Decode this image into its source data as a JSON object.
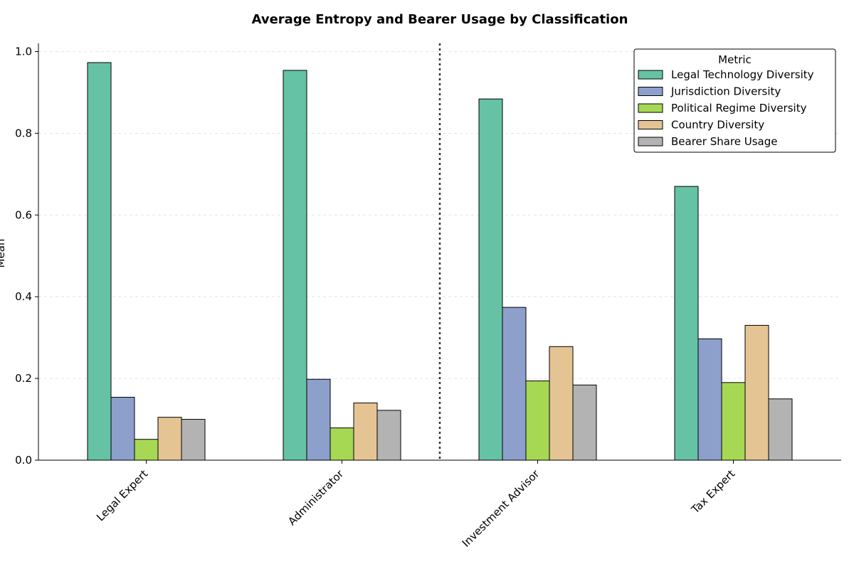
{
  "chart_data": {
    "type": "bar",
    "title": "Average Entropy and Bearer Usage by Classification",
    "xlabel": "",
    "ylabel": "Mean",
    "ylim": [
      0,
      1.02
    ],
    "yticks": [
      0.0,
      0.2,
      0.4,
      0.6,
      0.8,
      1.0
    ],
    "ytick_labels": [
      "0.0",
      "0.2",
      "0.4",
      "0.6",
      "0.8",
      "1.0"
    ],
    "grid": "horizontal dashed",
    "categories": [
      "Legal Expert",
      "Administrator",
      "Investment Advisor",
      "Tax Expert"
    ],
    "separator_after_category": 1,
    "legend": {
      "title": "Metric",
      "placement": "top-right"
    },
    "series": [
      {
        "name": "Legal Technology Diversity",
        "color": "#66c2a5",
        "values": [
          0.973,
          0.954,
          0.884,
          0.67
        ]
      },
      {
        "name": "Jurisdiction Diversity",
        "color": "#8da0cb",
        "values": [
          0.154,
          0.198,
          0.374,
          0.297
        ]
      },
      {
        "name": "Political Regime Diversity",
        "color": "#a6d854",
        "values": [
          0.051,
          0.079,
          0.194,
          0.19
        ]
      },
      {
        "name": "Country Diversity",
        "color": "#e5c494",
        "values": [
          0.105,
          0.14,
          0.278,
          0.33
        ]
      },
      {
        "name": "Bearer Share Usage",
        "color": "#b3b3b3",
        "values": [
          0.1,
          0.122,
          0.184,
          0.15
        ]
      }
    ]
  }
}
